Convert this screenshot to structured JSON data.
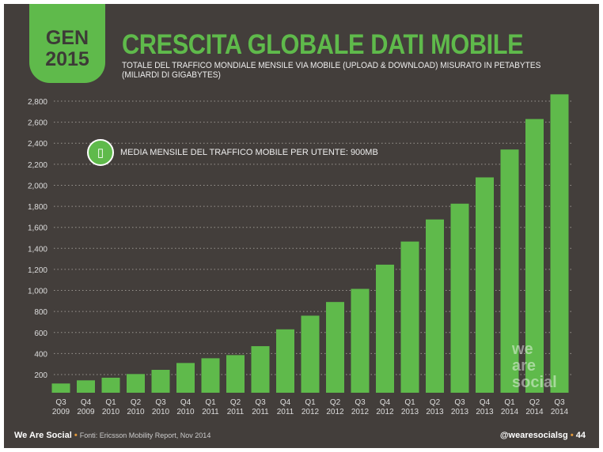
{
  "badge": {
    "line1": "GEN",
    "line2": "2015"
  },
  "title": "CRESCITA GLOBALE DATI MOBILE",
  "subtitle": "TOTALE DEL TRAFFICO MONDIALE MENSILE VIA MOBILE (UPLOAD & DOWNLOAD) MISURATO IN PETABYTES (MILIARDI DI GIGABYTES)",
  "annotation": {
    "icon": "smartphone-icon",
    "text": "MEDIA MENSILE DEL TRAFFICO MOBILE PER UTENTE: 900MB"
  },
  "watermark": "we are social",
  "footer": {
    "brand": "We Are Social",
    "source": "Fonti: Ericsson Mobility Report, Nov 2014",
    "handle": "@wearesocialsg",
    "page": "44"
  },
  "colors": {
    "background": "#433e3b",
    "accent": "#5fba4b",
    "handle_at": "#e59b3b"
  },
  "chart_data": {
    "type": "bar",
    "categories": [
      [
        "Q3",
        "2009"
      ],
      [
        "Q4",
        "2009"
      ],
      [
        "Q1",
        "2010"
      ],
      [
        "Q2",
        "2010"
      ],
      [
        "Q3",
        "2010"
      ],
      [
        "Q4",
        "2010"
      ],
      [
        "Q1",
        "2011"
      ],
      [
        "Q2",
        "2011"
      ],
      [
        "Q3",
        "2011"
      ],
      [
        "Q4",
        "2011"
      ],
      [
        "Q1",
        "2012"
      ],
      [
        "Q2",
        "2012"
      ],
      [
        "Q3",
        "2012"
      ],
      [
        "Q4",
        "2012"
      ],
      [
        "Q1",
        "2013"
      ],
      [
        "Q2",
        "2013"
      ],
      [
        "Q3",
        "2013"
      ],
      [
        "Q4",
        "2013"
      ],
      [
        "Q1",
        "2014"
      ],
      [
        "Q2",
        "2014"
      ],
      [
        "Q3",
        "2014"
      ]
    ],
    "values": [
      115,
      145,
      170,
      205,
      245,
      310,
      355,
      385,
      470,
      630,
      760,
      890,
      1015,
      1245,
      1465,
      1675,
      1825,
      2075,
      2340,
      2630,
      2865
    ],
    "yticks": [
      200,
      400,
      600,
      800,
      "1,000",
      "1,200",
      "1,400",
      "1,600",
      "1,800",
      "2,000",
      "2,200",
      "2,400",
      "2,600",
      "2,800"
    ],
    "ylim": [
      0,
      2800
    ],
    "grid": true,
    "color": "#5fba4b"
  }
}
